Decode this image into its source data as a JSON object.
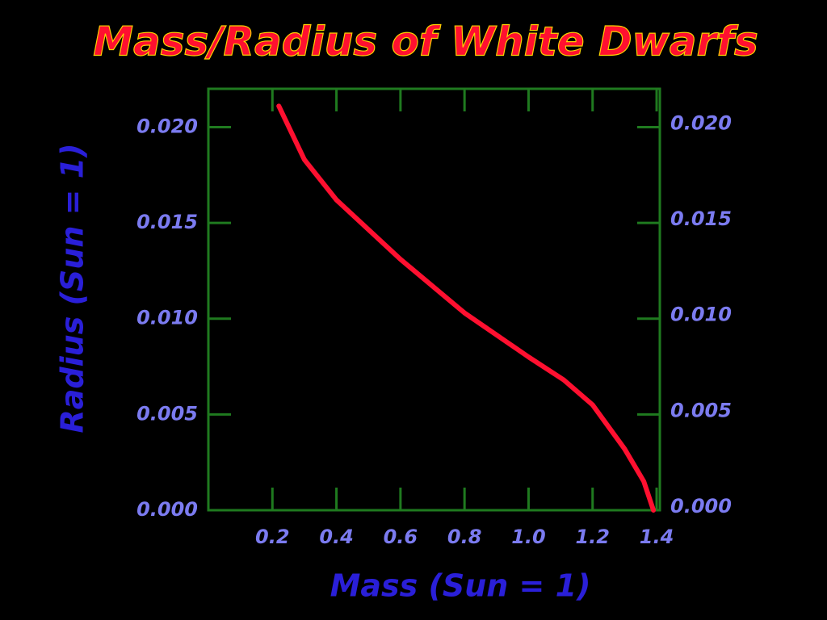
{
  "chart_data": {
    "type": "line",
    "title": "Mass/Radius of White Dwarfs",
    "x_label": "Mass (Sun = 1)",
    "y_label": "Radius (Sun = 1)",
    "x": [
      0.22,
      0.3,
      0.4,
      0.6,
      0.8,
      1.0,
      1.11,
      1.2,
      1.3,
      1.36,
      1.39
    ],
    "series": [
      {
        "color": "#ff1030",
        "values": [
          0.0211,
          0.0183,
          0.0162,
          0.0131,
          0.0103,
          0.008,
          0.0068,
          0.0055,
          0.0032,
          0.0015,
          0.0
        ]
      }
    ],
    "xlim": [
      0,
      1.41
    ],
    "xticks": [
      0.2,
      0.4,
      0.6,
      0.8,
      {
        "value": 1,
        "label": "1.0"
      },
      1.2,
      1.4
    ],
    "ylim": [
      0,
      0.022
    ],
    "yticks": [
      {
        "value": 0,
        "label": "0.000"
      },
      {
        "value": 0.005,
        "label": "0.005"
      },
      {
        "value": 0.01,
        "label": "0.010"
      },
      {
        "value": 0.015,
        "label": "0.015"
      },
      {
        "value": 0.02,
        "label": "0.020"
      }
    ],
    "y2lim": [
      0,
      0.022
    ],
    "y2ticks": [
      {
        "value": 0,
        "label": "0.000"
      },
      {
        "value": 0.005,
        "label": "0.005"
      },
      {
        "value": 0.01,
        "label": "0.010"
      },
      {
        "value": 0.015,
        "label": "0.015"
      },
      {
        "value": 0.02,
        "label": "0.020"
      }
    ],
    "frame_color": "#1f7a1f"
  }
}
